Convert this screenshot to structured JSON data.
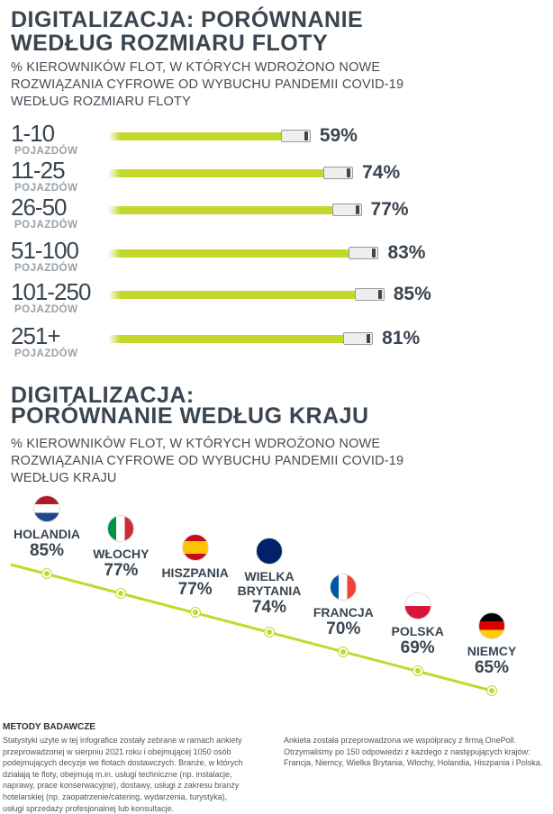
{
  "chart_data": [
    {
      "type": "bar",
      "title": "DIGITALIZACJA: PORÓWNANIE WEDŁUG ROZMIARU FLOTY",
      "subtitle": [
        "% KIEROWNIKÓW FLOT, W KTÓRYCH WDROŻONO NOWE",
        "ROZWIĄZANIA CYFROWE OD WYBUCHU PANDEMII COVID-19",
        "WEDŁUG ROZMIARU FLOTY"
      ],
      "unit_label": "POJAZDÓW",
      "categories": [
        "1-10",
        "11-25",
        "26-50",
        "51-100",
        "101-250",
        "251+"
      ],
      "values": [
        59,
        74,
        77,
        83,
        85,
        81
      ],
      "labels": [
        "59%",
        "74%",
        "77%",
        "83%",
        "85%",
        "81%"
      ],
      "color": "#c3d82a"
    },
    {
      "type": "line",
      "title": [
        "DIGITALIZACJA:",
        "PORÓWNANIE WEDŁUG KRAJU"
      ],
      "subtitle": [
        "% KIEROWNIKÓW FLOT, W KTÓRYCH WDROŻONO NOWE",
        "ROZWIĄZANIA CYFROWE OD WYBUCHU PANDEMII COVID-19",
        "WEDŁUG KRAJU"
      ],
      "categories": [
        "HOLANDIA",
        "WŁOCHY",
        "HISZPANIA",
        "WIELKA BRYTANIA",
        "FRANCJA",
        "POLSKA",
        "NIEMCY"
      ],
      "values": [
        85,
        77,
        77,
        74,
        70,
        69,
        65
      ],
      "labels": [
        "85%",
        "77%",
        "77%",
        "74%",
        "70%",
        "69%",
        "65%"
      ],
      "flags": [
        "nl",
        "it",
        "es",
        "gb",
        "fr",
        "pl",
        "de"
      ],
      "color": "#c3d82a"
    }
  ],
  "footer": {
    "heading": "METODY BADAWCZE",
    "left": "Statystyki użyte w tej infografice zostały zebrane w ramach ankiety przeprowadzonej w sierpniu 2021 roku i obejmującej 1050 osób podejmujących decyzje we flotach dostawczych. Branże, w których działają te floty, obejmują m.in. usługi techniczne (np. instalacje, naprawy, prace konserwacyjne), dostawy, usługi z zakresu branży hotelarskiej (np. zaopatrzenie/catering, wydarzenia, turystyka), usługi sprzedaży profesjonalnej lub konsultacje.",
    "right": "Ankieta została przeprowadzona we współpracy z firmą OnePoll. Otrzymaliśmy po 150 odpowiedzi z każdego z następujących krajów: Francja, Niemcy, Wielka Brytania, Włochy, Holandia, Hiszpania i Polska."
  }
}
